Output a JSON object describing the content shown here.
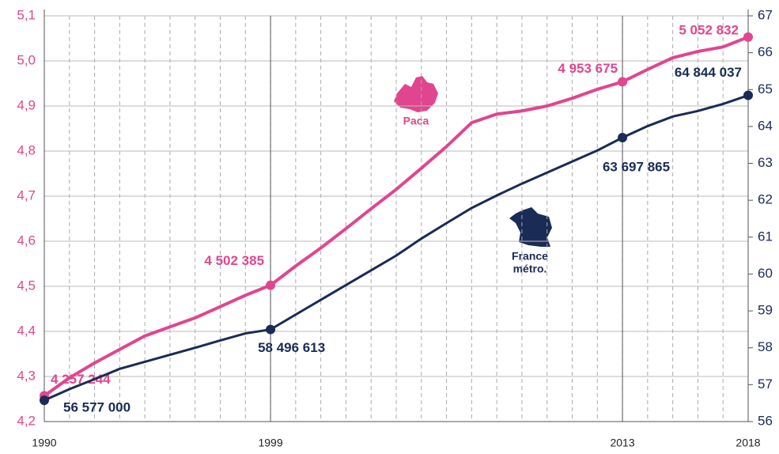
{
  "chart_data": {
    "type": "line",
    "x": [
      1990,
      1991,
      1992,
      1993,
      1994,
      1995,
      1996,
      1997,
      1998,
      1999,
      2000,
      2001,
      2002,
      2003,
      2004,
      2005,
      2006,
      2007,
      2008,
      2009,
      2010,
      2011,
      2012,
      2013,
      2014,
      2015,
      2016,
      2017,
      2018
    ],
    "xlim": [
      1990,
      2018
    ],
    "xticks": [
      1990,
      1999,
      2013,
      2018
    ],
    "ylim": [
      4.2,
      5.1
    ],
    "yticks": [
      {
        "value": 4.2,
        "label": "4,2"
      },
      {
        "value": 4.3,
        "label": "4,3"
      },
      {
        "value": 4.4,
        "label": "4,4"
      },
      {
        "value": 4.5,
        "label": "4,5"
      },
      {
        "value": 4.6,
        "label": "4,6"
      },
      {
        "value": 4.7,
        "label": "4,7"
      },
      {
        "value": 4.8,
        "label": "4,8"
      },
      {
        "value": 4.9,
        "label": "4,9"
      },
      {
        "value": 5.0,
        "label": "5,0"
      },
      {
        "value": 5.1,
        "label": "5,1"
      }
    ],
    "y2lim": [
      56,
      67
    ],
    "y2ticks": [
      56,
      57,
      58,
      59,
      60,
      61,
      62,
      63,
      64,
      65,
      66,
      67
    ],
    "grid": true,
    "annotations": [
      "Paca",
      "France",
      "métro."
    ],
    "series": [
      {
        "name": "Paca",
        "color": "#e0468f",
        "values": [
          4.257244,
          4.297,
          4.33,
          4.36,
          4.39,
          4.41,
          4.43,
          4.455,
          4.48,
          4.502385,
          4.545,
          4.585,
          4.628,
          4.672,
          4.715,
          4.762,
          4.81,
          4.863,
          4.882,
          4.889,
          4.9,
          4.917,
          4.937,
          4.953675,
          4.981,
          5.007,
          5.021,
          5.031,
          5.052832
        ],
        "value_labels": [
          "4 257 244",
          null,
          null,
          null,
          null,
          null,
          null,
          null,
          null,
          "4 502 385",
          null,
          null,
          null,
          null,
          null,
          null,
          null,
          null,
          null,
          null,
          null,
          null,
          null,
          "4 953 675",
          null,
          null,
          null,
          null,
          "5 052 832"
        ]
      },
      {
        "name": "France métro.",
        "color": "#1a2b55",
        "axis": "y2",
        "values": [
          56.577,
          56.88,
          57.15,
          57.43,
          57.62,
          57.81,
          58.0,
          58.2,
          58.39,
          58.496613,
          58.9,
          59.3,
          59.7,
          60.1,
          60.5,
          60.96,
          61.38,
          61.79,
          62.13,
          62.45,
          62.75,
          63.05,
          63.35,
          63.697865,
          64.01,
          64.27,
          64.42,
          64.61,
          64.844037
        ],
        "value_labels": [
          "56 577 000",
          null,
          null,
          null,
          null,
          null,
          null,
          null,
          null,
          "58 496 613",
          null,
          null,
          null,
          null,
          null,
          null,
          null,
          null,
          null,
          null,
          null,
          null,
          null,
          "63 697 865",
          null,
          null,
          null,
          null,
          "64 844 037"
        ]
      }
    ]
  }
}
